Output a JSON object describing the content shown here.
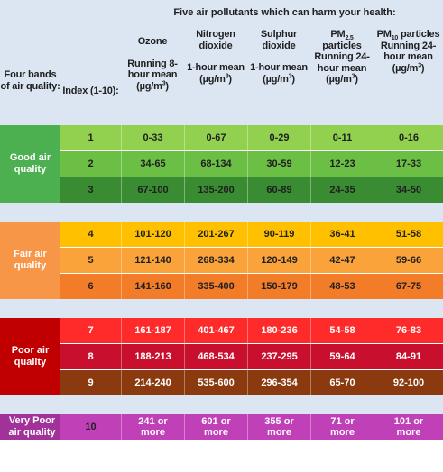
{
  "header": {
    "title": "Five air pollutants which can harm your health:",
    "band_label": "Four bands of air quality:",
    "index_label": "Index (1-10):",
    "columns": [
      {
        "name": "Ozone",
        "metric": "Running 8-hour mean",
        "unit": "(µg/m",
        "unit_sup": "3",
        "unit_end": ")"
      },
      {
        "name": "Nitrogen dioxide",
        "metric": "1-hour mean",
        "unit": "(µg/m",
        "unit_sup": "3",
        "unit_end": ")"
      },
      {
        "name": "Sulphur dioxide",
        "metric": "1-hour mean",
        "unit": "(µg/m",
        "unit_sup": "3",
        "unit_end": ")"
      },
      {
        "name": "PM",
        "name_sub": "2.5",
        "name_end": " particles",
        "metric": "Running 24-hour mean",
        "unit": "(µg/m",
        "unit_sup": "3",
        "unit_end": ")"
      },
      {
        "name": "PM",
        "name_sub": "10",
        "name_end": " particles",
        "metric": "Running 24-hour mean",
        "unit": "(µg/m",
        "unit_sup": "3",
        "unit_end": ")"
      }
    ]
  },
  "bands": [
    {
      "label": "Good air quality",
      "label_color": "#4caf50",
      "text_color": "#ffffff",
      "rows": [
        {
          "index": "1",
          "values": [
            "0-33",
            "0-67",
            "0-29",
            "0-11",
            "0-16"
          ],
          "bg": "#92d050",
          "fg": "#1f1f1f"
        },
        {
          "index": "2",
          "values": [
            "34-65",
            "68-134",
            "30-59",
            "12-23",
            "17-33"
          ],
          "bg": "#6bbf44",
          "fg": "#1f1f1f"
        },
        {
          "index": "3",
          "values": [
            "67-100",
            "135-200",
            "60-89",
            "24-35",
            "34-50"
          ],
          "bg": "#3a8c32",
          "fg": "#1f1f1f"
        }
      ]
    },
    {
      "label": "Fair air quality",
      "label_color": "#f79646",
      "text_color": "#ffffff",
      "rows": [
        {
          "index": "4",
          "values": [
            "101-120",
            "201-267",
            "90-119",
            "36-41",
            "51-58"
          ],
          "bg": "#ffc000",
          "fg": "#1f1f1f"
        },
        {
          "index": "5",
          "values": [
            "121-140",
            "268-334",
            "120-149",
            "42-47",
            "59-66"
          ],
          "bg": "#f9a33a",
          "fg": "#1f1f1f"
        },
        {
          "index": "6",
          "values": [
            "141-160",
            "335-400",
            "150-179",
            "48-53",
            "67-75"
          ],
          "bg": "#f27c28",
          "fg": "#1f1f1f"
        }
      ]
    },
    {
      "label": "Poor air quality",
      "label_color": "#c00000",
      "text_color": "#ffffff",
      "rows": [
        {
          "index": "7",
          "values": [
            "161-187",
            "401-467",
            "180-236",
            "54-58",
            "76-83"
          ],
          "bg": "#ff2a2a",
          "fg": "#ffffff"
        },
        {
          "index": "8",
          "values": [
            "188-213",
            "468-534",
            "237-295",
            "59-64",
            "84-91"
          ],
          "bg": "#c8102e",
          "fg": "#ffffff"
        },
        {
          "index": "9",
          "values": [
            "214-240",
            "535-600",
            "296-354",
            "65-70",
            "92-100"
          ],
          "bg": "#8b3a0f",
          "fg": "#ffffff"
        }
      ]
    },
    {
      "label": "Very Poor air quality",
      "label_color": "#a0329a",
      "text_color": "#ffffff",
      "rows": [
        {
          "index": "10",
          "values": [
            "241 or more",
            "601 or more",
            "355 or more",
            "71 or more",
            "101 or more"
          ],
          "bg": "#c040b8",
          "fg": "#ffffff"
        }
      ]
    }
  ]
}
